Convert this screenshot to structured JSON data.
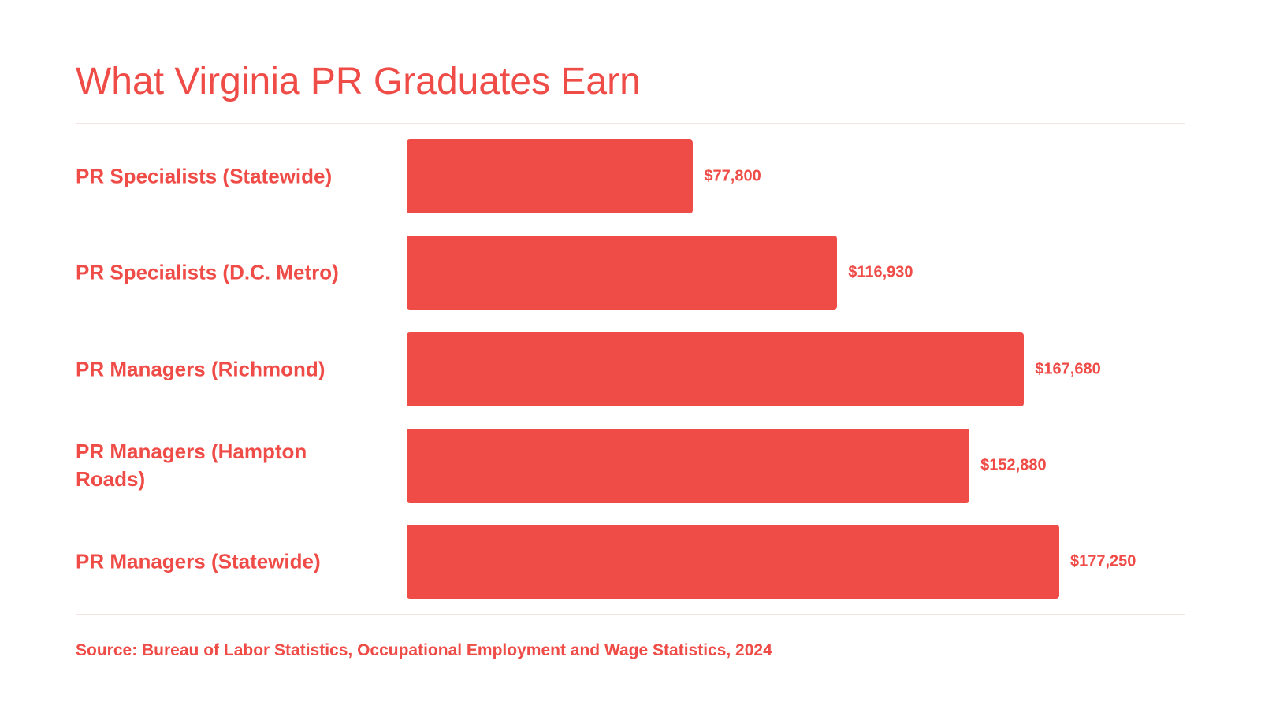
{
  "chart_data": {
    "type": "bar",
    "orientation": "horizontal",
    "title": "What Virginia PR Graduates Earn",
    "categories": [
      "PR Specialists (Statewide)",
      "PR Specialists (D.C. Metro)",
      "PR Managers (Richmond)",
      "PR Managers (Hampton Roads)",
      "PR Managers (Statewide)"
    ],
    "values": [
      77800,
      116930,
      167680,
      152880,
      177250
    ],
    "value_labels": [
      "$77,800",
      "$116,930",
      "$167,680",
      "$152,880",
      "$177,250"
    ],
    "color": "#ef4b47",
    "source": "Source: Bureau of Labor Statistics, Occupational Employment and Wage Statistics, 2024"
  }
}
